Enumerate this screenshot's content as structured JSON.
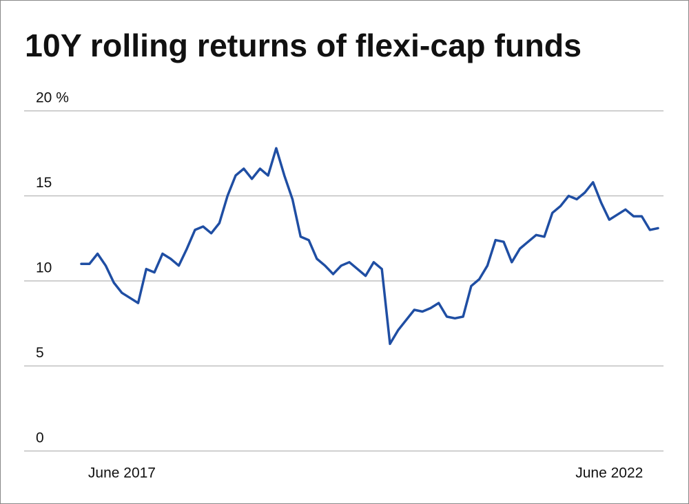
{
  "chart_data": {
    "type": "line",
    "title": "10Y rolling returns of flexi-cap funds",
    "categories": [
      null,
      null,
      null,
      null,
      null,
      "June 2017",
      null,
      null,
      null,
      null,
      null,
      null,
      null,
      null,
      null,
      null,
      null,
      null,
      null,
      null,
      null,
      null,
      null,
      null,
      null,
      null,
      null,
      null,
      null,
      null,
      null,
      null,
      null,
      null,
      null,
      null,
      null,
      null,
      null,
      null,
      null,
      null,
      null,
      null,
      null,
      null,
      null,
      null,
      null,
      null,
      null,
      null,
      null,
      null,
      null,
      null,
      null,
      null,
      null,
      null,
      null,
      null,
      null,
      null,
      null,
      "June 2022",
      null,
      null,
      null,
      null,
      null,
      null
    ],
    "values": [
      11.0,
      11.0,
      11.6,
      10.9,
      9.9,
      9.3,
      9.0,
      8.7,
      10.7,
      10.5,
      11.6,
      11.3,
      10.9,
      11.9,
      13.0,
      13.2,
      12.8,
      13.4,
      15.0,
      16.2,
      16.6,
      16.0,
      16.6,
      16.2,
      17.8,
      16.2,
      14.8,
      12.6,
      12.4,
      11.3,
      10.9,
      10.4,
      10.9,
      11.1,
      10.7,
      10.3,
      11.1,
      10.7,
      6.3,
      7.1,
      7.7,
      8.3,
      8.2,
      8.4,
      8.7,
      7.9,
      7.8,
      7.9,
      9.7,
      10.1,
      10.9,
      12.4,
      12.3,
      11.1,
      11.9,
      12.3,
      12.7,
      12.6,
      14.0,
      14.4,
      15.0,
      14.8,
      15.2,
      15.8,
      14.6,
      13.6,
      13.9,
      14.2,
      13.8,
      13.8,
      13.0,
      13.1
    ],
    "color": "#1f4ea3",
    "ylim": [
      0,
      20
    ],
    "yticks": [
      0,
      5,
      10,
      15,
      {
        "value": 20,
        "label": "20 %"
      }
    ],
    "grid": true
  }
}
